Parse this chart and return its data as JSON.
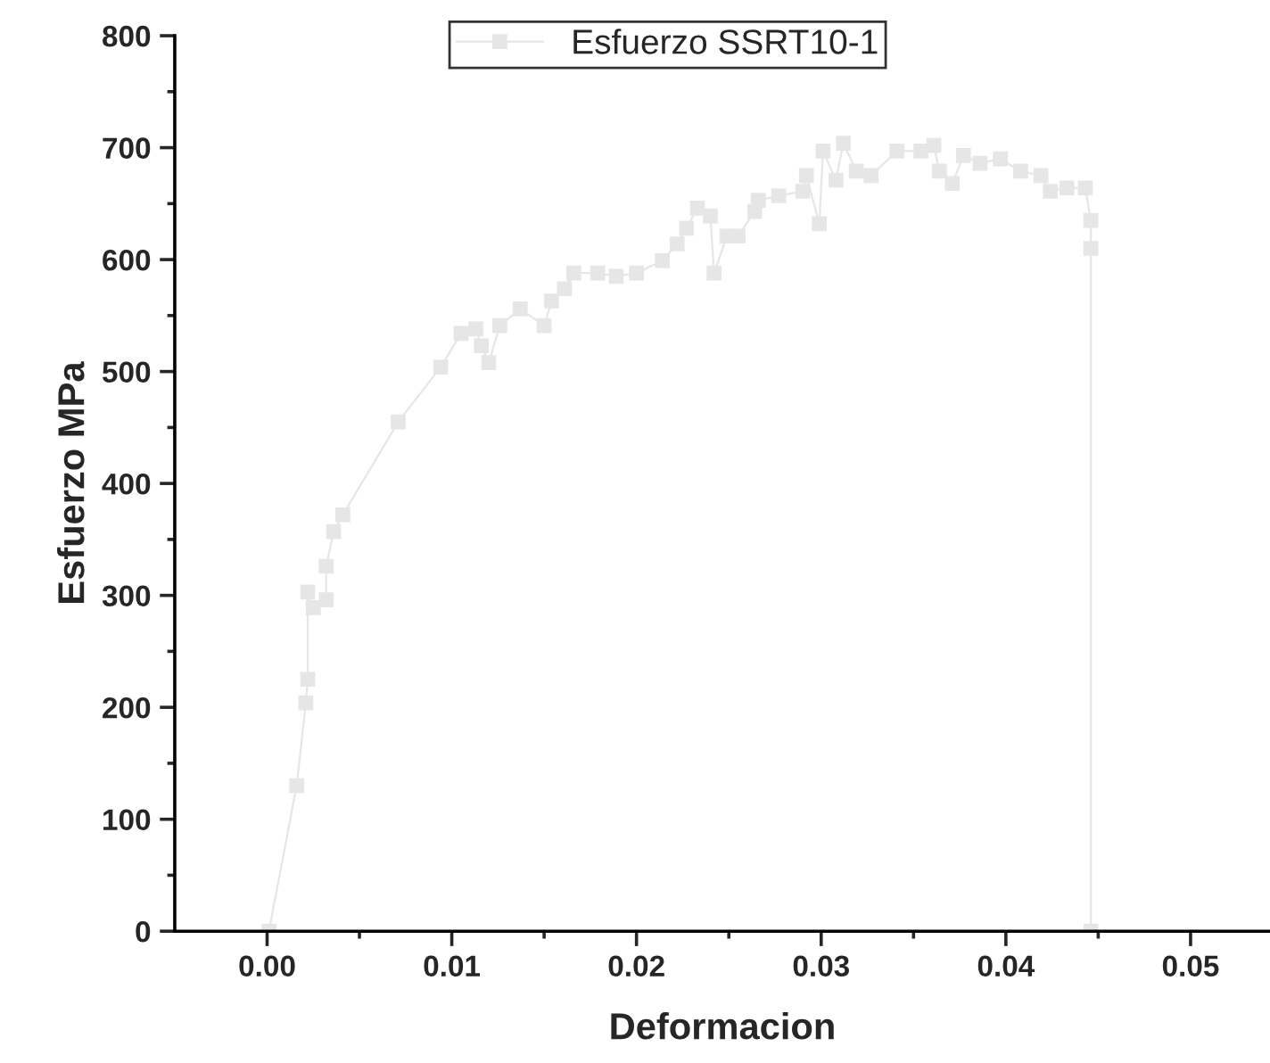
{
  "chart_data": {
    "type": "line",
    "xlabel": "Deformacion",
    "ylabel": "Esfuerzo MPa",
    "series": [
      {
        "name": "Esfuerzo SSRT10-1",
        "color": "#e6e6e6",
        "x": [
          0.0001,
          0.0016,
          0.0021,
          0.0022,
          0.0022,
          0.0025,
          0.0032,
          0.0032,
          0.0036,
          0.0041,
          0.0071,
          0.0094,
          0.0105,
          0.0113,
          0.0116,
          0.012,
          0.0126,
          0.0137,
          0.015,
          0.0154,
          0.0161,
          0.0166,
          0.0179,
          0.0189,
          0.02,
          0.0214,
          0.0222,
          0.0227,
          0.0233,
          0.024,
          0.0242,
          0.0249,
          0.0255,
          0.0264,
          0.0266,
          0.0277,
          0.029,
          0.0292,
          0.0299,
          0.0301,
          0.0308,
          0.0312,
          0.0319,
          0.0327,
          0.0341,
          0.0354,
          0.0361,
          0.0364,
          0.0371,
          0.0377,
          0.0386,
          0.0397,
          0.0408,
          0.0419,
          0.0424,
          0.0433,
          0.0443,
          0.0446,
          0.0446,
          0.0446
        ],
        "values": [
          0,
          130,
          204,
          225,
          303,
          289,
          296,
          326,
          357,
          372,
          455,
          504,
          534,
          538,
          523,
          508,
          541,
          556,
          541,
          563,
          574,
          588,
          588,
          585,
          588,
          599,
          614,
          628,
          646,
          639,
          588,
          621,
          621,
          643,
          653,
          657,
          661,
          675,
          632,
          697,
          671,
          704,
          679,
          675,
          697,
          697,
          702,
          679,
          668,
          693,
          686,
          690,
          679,
          675,
          661,
          664,
          664,
          635,
          610,
          0
        ]
      }
    ],
    "xlim": [
      -0.005,
      0.0543
    ],
    "xticks": [
      {
        "value": 0,
        "label": "0.00"
      },
      {
        "value": 0.01,
        "label": "0.01"
      },
      {
        "value": 0.02,
        "label": "0.02"
      },
      {
        "value": 0.03,
        "label": "0.03"
      },
      {
        "value": 0.04,
        "label": "0.04"
      },
      {
        "value": 0.05,
        "label": "0.05"
      }
    ],
    "ylim": [
      0,
      800
    ],
    "yticks": [
      0,
      100,
      200,
      300,
      400,
      500,
      600,
      700,
      800
    ],
    "grid": false,
    "legend": "top",
    "marker": "square",
    "line_style": "solid"
  }
}
